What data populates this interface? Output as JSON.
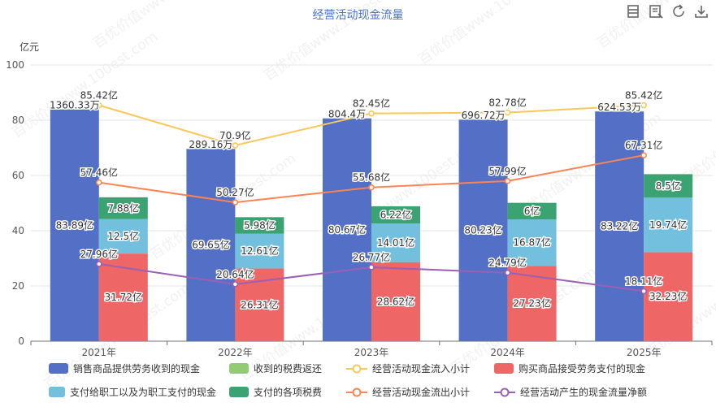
{
  "title": "经营活动现金流量",
  "y_unit": "亿元",
  "toolbar": {
    "icons": [
      "data-view-icon",
      "magic-type-icon",
      "restore-icon",
      "save-image-icon"
    ]
  },
  "watermark": "百优价值www.100est.com",
  "colors": {
    "sales": "#5470c6",
    "tax_refund": "#91cc75",
    "inflow_total": "#fac858",
    "purchases": "#ee6666",
    "employees": "#73c0de",
    "taxes": "#3ba272",
    "outflow_total": "#fc8452",
    "net": "#9a60b4"
  },
  "chart_data": {
    "type": "bar",
    "categories": [
      "2021年",
      "2022年",
      "2023年",
      "2024年",
      "2025年"
    ],
    "ylim": [
      0,
      100
    ],
    "yticks": [
      "0",
      "20",
      "40",
      "60",
      "80",
      "100"
    ],
    "legend_position": "bottom",
    "series": [
      {
        "key": "sales",
        "name": "销售商品提供劳务收到的现金",
        "kind": "bar",
        "stack": "in",
        "values": [
          83.89,
          69.65,
          80.67,
          80.23,
          83.22
        ],
        "labels": [
          "83.89亿",
          "69.65亿",
          "80.67亿",
          "80.23亿",
          "83.22亿"
        ]
      },
      {
        "key": "tax_refund",
        "name": "收到的税费返还",
        "kind": "bar",
        "stack": "in",
        "values": [
          0.136,
          0.0289,
          0.0804,
          0.0697,
          0.0625
        ],
        "labels": [
          "1360.33万",
          "289.16万",
          "804.4万",
          "696.72万",
          "624.53万"
        ]
      },
      {
        "key": "inflow_total",
        "name": "经营活动现金流入小计",
        "kind": "line",
        "values": [
          85.42,
          70.9,
          82.45,
          82.78,
          85.42
        ],
        "labels": [
          "85.42亿",
          "70.9亿",
          "82.45亿",
          "82.78亿",
          "85.42亿"
        ]
      },
      {
        "key": "purchases",
        "name": "购买商品接受劳务支付的现金",
        "kind": "bar",
        "stack": "out",
        "values": [
          31.72,
          26.31,
          28.62,
          27.23,
          32.23
        ],
        "labels": [
          "31.72亿",
          "26.31亿",
          "28.62亿",
          "27.23亿",
          "32.23亿"
        ]
      },
      {
        "key": "employees",
        "name": "支付给职工以及为职工支付的现金",
        "kind": "bar",
        "stack": "out",
        "values": [
          12.5,
          12.61,
          14.01,
          16.87,
          19.74
        ],
        "labels": [
          "12.5亿",
          "12.61亿",
          "14.01亿",
          "16.87亿",
          "19.74亿"
        ]
      },
      {
        "key": "taxes",
        "name": "支付的各项税费",
        "kind": "bar",
        "stack": "out",
        "values": [
          7.88,
          5.98,
          6.22,
          6.0,
          8.5
        ],
        "labels": [
          "7.88亿",
          "5.98亿",
          "6.22亿",
          "6亿",
          "8.5亿"
        ]
      },
      {
        "key": "outflow_total",
        "name": "经营活动现金流出小计",
        "kind": "line",
        "values": [
          57.46,
          50.27,
          55.68,
          57.99,
          67.31
        ],
        "labels": [
          "57.46亿",
          "50.27亿",
          "55.68亿",
          "57.99亿",
          "67.31亿"
        ]
      },
      {
        "key": "net",
        "name": "经营活动产生的现金流量净额",
        "kind": "line",
        "values": [
          27.96,
          20.64,
          26.77,
          24.79,
          18.11
        ],
        "labels": [
          "27.96亿",
          "20.64亿",
          "26.77亿",
          "24.79亿",
          "18.11亿"
        ]
      }
    ]
  }
}
